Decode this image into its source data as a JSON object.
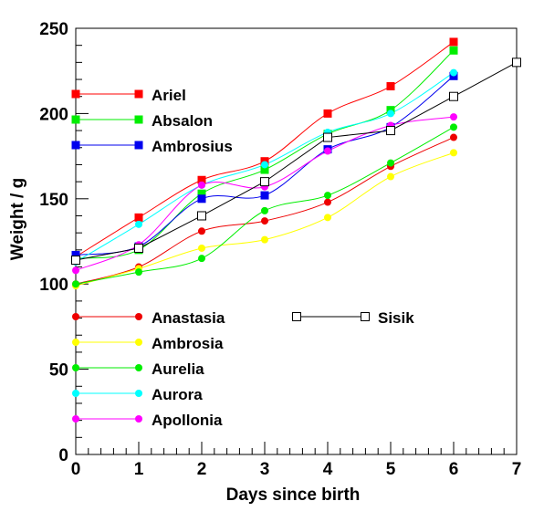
{
  "chart_data": {
    "type": "line",
    "xlabel": "Days since birth",
    "ylabel": "Weight / g",
    "xlim": [
      0,
      7
    ],
    "ylim": [
      0,
      250
    ],
    "xticks": [
      "0",
      "1",
      "2",
      "3",
      "4",
      "5",
      "6",
      "7"
    ],
    "yticks": [
      "0",
      "50",
      "100",
      "150",
      "200",
      "250"
    ],
    "grid": false,
    "legends": [
      {
        "placement": "top-left",
        "entries": [
          "Ariel",
          "Absalon",
          "Ambrosius"
        ]
      },
      {
        "placement": "bottom-left",
        "entries": [
          "Anastasia",
          "Ambrosia",
          "Aurelia",
          "Aurora",
          "Apollonia"
        ]
      },
      {
        "placement": "bottom-center",
        "entries": [
          "Sisik"
        ]
      }
    ],
    "series": [
      {
        "name": "Ariel",
        "color": "#ff0000",
        "marker": "square",
        "smooth": true,
        "x": [
          0,
          1,
          2,
          3,
          4,
          5,
          6
        ],
        "y": [
          116,
          139,
          161,
          172,
          200,
          216,
          242
        ]
      },
      {
        "name": "Absalon",
        "color": "#00ee00",
        "marker": "square",
        "smooth": true,
        "x": [
          0,
          1,
          2,
          3,
          4,
          5,
          6
        ],
        "y": [
          115,
          120,
          153,
          167,
          188,
          202,
          237
        ]
      },
      {
        "name": "Ambrosius",
        "color": "#0000ee",
        "marker": "square",
        "smooth": true,
        "x": [
          0,
          1,
          2,
          3,
          4,
          5,
          6
        ],
        "y": [
          117,
          122,
          150,
          152,
          179,
          192,
          222
        ]
      },
      {
        "name": "Anastasia",
        "color": "#ee0000",
        "marker": "circle",
        "smooth": true,
        "x": [
          0,
          1,
          2,
          3,
          4,
          5,
          6
        ],
        "y": [
          100,
          110,
          131,
          137,
          148,
          169,
          186
        ]
      },
      {
        "name": "Ambrosia",
        "color": "#ffff00",
        "marker": "circle",
        "smooth": true,
        "x": [
          0,
          1,
          2,
          3,
          4,
          5,
          6
        ],
        "y": [
          99,
          109,
          121,
          126,
          139,
          163,
          177
        ]
      },
      {
        "name": "Aurelia",
        "color": "#00ee00",
        "marker": "circle",
        "smooth": true,
        "x": [
          0,
          1,
          2,
          3,
          4,
          5,
          6
        ],
        "y": [
          100,
          107,
          115,
          143,
          152,
          171,
          192
        ]
      },
      {
        "name": "Aurora",
        "color": "#00ffff",
        "marker": "circle",
        "smooth": true,
        "x": [
          0,
          1,
          2,
          3,
          4,
          5,
          6
        ],
        "y": [
          113,
          135,
          158,
          170,
          189,
          200,
          224
        ]
      },
      {
        "name": "Apollonia",
        "color": "#ff00ff",
        "marker": "circle",
        "smooth": true,
        "x": [
          0,
          1,
          2,
          3,
          4,
          5,
          6
        ],
        "y": [
          108,
          123,
          158,
          157,
          178,
          193,
          198
        ]
      },
      {
        "name": "Sisik",
        "color": "#000000",
        "marker": "open-square",
        "smooth": false,
        "x": [
          0,
          1,
          2,
          3,
          4,
          5,
          6,
          7
        ],
        "y": [
          114,
          121,
          140,
          160,
          186,
          190,
          210,
          230
        ]
      }
    ]
  }
}
